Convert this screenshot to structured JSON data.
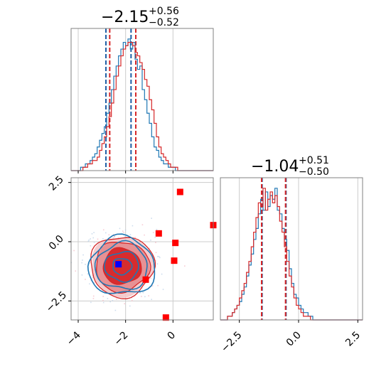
{
  "colors": {
    "blue": "#1f77b4",
    "red": "#d62728",
    "blue_marker": "#0000ff",
    "red_marker": "#ff0000",
    "grid": "#cccccc",
    "frame": "#808080",
    "band_blue": "#1f5fa6",
    "band_red": "#d62728"
  },
  "chart_data": {
    "type": "corner",
    "panels": [
      {
        "id": "hist_param1",
        "type": "step-histogram",
        "title": {
          "median": "−2.15",
          "plus": "+0.56",
          "minus": "−0.52"
        },
        "xlim": [
          -4.3,
          1.7
        ],
        "quantile_lines": {
          "blue": [
            -2.83,
            -1.77
          ],
          "red": [
            -2.67,
            -1.57
          ]
        },
        "bin_start": -4.3,
        "bin_width": 0.1,
        "series": [
          {
            "name": "",
            "color": "blue",
            "counts": [
              0,
              0,
              0,
              0,
              1,
              1,
              2,
              2,
              3,
              4,
              5,
              7,
              9,
              11,
              13,
              17,
              20,
              24,
              28,
              31,
              34,
              36,
              38,
              37,
              39,
              36,
              38,
              33,
              30,
              31,
              24,
              21,
              17,
              14,
              10,
              7,
              6,
              4,
              3,
              2,
              2,
              1,
              1,
              1,
              0,
              0,
              0,
              0,
              0,
              0,
              0,
              0,
              0,
              0,
              0,
              0,
              0,
              0,
              0,
              0
            ]
          },
          {
            "name": "",
            "color": "red",
            "counts": [
              0,
              0,
              0,
              0,
              0,
              1,
              1,
              2,
              2,
              3,
              3,
              4,
              6,
              8,
              10,
              13,
              16,
              20,
              24,
              28,
              31,
              34,
              36,
              37,
              38,
              38,
              37,
              35,
              34,
              32,
              30,
              27,
              25,
              21,
              18,
              14,
              10,
              7,
              5,
              4,
              3,
              2,
              1,
              1,
              1,
              0,
              0,
              0,
              0,
              0,
              0,
              0,
              0,
              0,
              0,
              0,
              0,
              0,
              0,
              0
            ]
          }
        ]
      },
      {
        "id": "scatter_2d",
        "type": "contour",
        "xlim": [
          -4.3,
          1.7
        ],
        "ylim": [
          -3.3,
          2.7
        ],
        "xticks": [
          -4,
          -2,
          0
        ],
        "xtick_labels": [
          "−4",
          "−2",
          "0"
        ],
        "yticks": [
          -2.5,
          0.0,
          2.5
        ],
        "ytick_labels": [
          "−2.5",
          "0.0",
          "2.5"
        ],
        "center": [
          -2.15,
          -1.04
        ],
        "blue_marker": [
          -2.3,
          -0.95
        ],
        "red_markers": [
          [
            0.3,
            2.1
          ],
          [
            -0.6,
            0.35
          ],
          [
            0.1,
            -0.05
          ],
          [
            0.05,
            -0.8
          ],
          [
            -1.15,
            -1.6
          ],
          [
            -0.3,
            -3.2
          ],
          [
            1.7,
            0.7
          ]
        ]
      },
      {
        "id": "hist_param2",
        "type": "step-histogram",
        "title": {
          "median": "−1.04",
          "plus": "+0.51",
          "minus": "−0.50"
        },
        "xlim": [
          -3.3,
          2.7
        ],
        "xticks": [
          -2.5,
          0.0,
          2.5
        ],
        "xtick_labels": [
          "−2.5",
          "0.0",
          "2.5"
        ],
        "quantile_lines": {
          "blue": [
            -1.54,
            -0.53
          ],
          "red": [
            -1.56,
            -0.55
          ]
        },
        "bin_start": -3.3,
        "bin_width": 0.1,
        "series": [
          {
            "name": "",
            "color": "blue",
            "counts": [
              0,
              0,
              0,
              1,
              1,
              2,
              3,
              4,
              5,
              7,
              9,
              12,
              15,
              18,
              22,
              25,
              29,
              33,
              30,
              35,
              31,
              34,
              33,
              36,
              30,
              29,
              25,
              22,
              19,
              14,
              10,
              7,
              6,
              4,
              3,
              2,
              2,
              1,
              1,
              0,
              0,
              0,
              0,
              0,
              0,
              0,
              0,
              0,
              0,
              0,
              0,
              0,
              0,
              0,
              0,
              0,
              0,
              0,
              0,
              0
            ]
          },
          {
            "name": "",
            "color": "red",
            "counts": [
              0,
              0,
              0,
              1,
              1,
              2,
              3,
              4,
              6,
              8,
              10,
              13,
              16,
              20,
              24,
              28,
              32,
              31,
              36,
              30,
              33,
              35,
              32,
              34,
              31,
              27,
              24,
              20,
              16,
              12,
              9,
              6,
              4,
              3,
              2,
              1,
              1,
              1,
              0,
              0,
              0,
              0,
              0,
              0,
              0,
              0,
              0,
              0,
              0,
              0,
              0,
              0,
              0,
              0,
              0,
              0,
              0,
              0,
              0,
              0
            ]
          }
        ]
      }
    ]
  }
}
